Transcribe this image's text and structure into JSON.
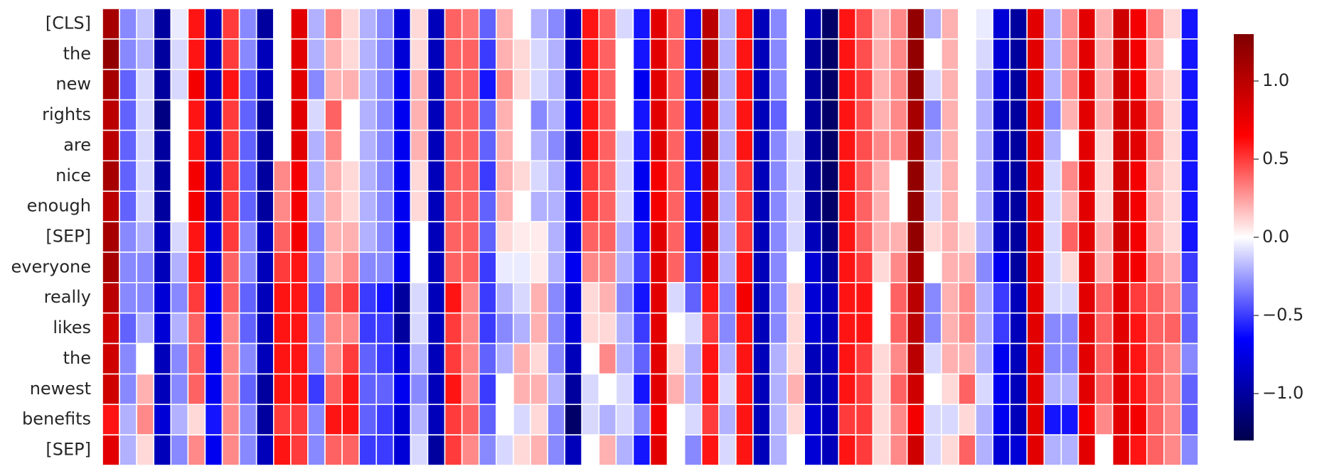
{
  "chart_data": {
    "type": "heatmap",
    "colormap": "seismic",
    "rows": [
      "[CLS]",
      "the",
      "new",
      "rights",
      "are",
      "nice",
      "enough",
      "[SEP]",
      "everyone",
      "really",
      "likes",
      "the",
      "newest",
      "benefits",
      "[SEP]"
    ],
    "vlim": [
      -1.3,
      1.3
    ],
    "colorbar_ticks": [
      {
        "value": -1.0,
        "label": "−1.0"
      },
      {
        "value": -0.5,
        "label": "−0.5"
      },
      {
        "value": 0,
        "label": "0.0"
      },
      {
        "value": 0.5,
        "label": "0.5"
      },
      {
        "value": 1.0,
        "label": "1.0"
      }
    ],
    "values": [
      [
        1.1,
        -0.3,
        -0.15,
        -1.0,
        -0.05,
        0.6,
        -0.9,
        0.5,
        -0.3,
        -1.0,
        0.0,
        0.8,
        -0.2,
        0.3,
        0.1,
        -0.2,
        -0.3,
        -0.8,
        0.1,
        -0.9,
        0.4,
        0.35,
        -0.4,
        0.2,
        0.0,
        -0.2,
        -0.3,
        -0.9,
        0.6,
        0.4,
        -0.1,
        -0.6,
        0.8,
        0.4,
        -0.6,
        1.0,
        -0.2,
        0.6,
        -0.9,
        -0.3,
        0.0,
        -0.9,
        -1.2,
        0.6,
        0.45,
        0.2,
        0.3,
        1.2,
        -0.2,
        0.2,
        0.0,
        -0.05,
        -0.8,
        -1.0,
        0.8,
        -0.2,
        0.3,
        0.8,
        0.2,
        0.9,
        0.7,
        0.3,
        0.1,
        -0.6
      ],
      [
        1.2,
        -0.3,
        -0.2,
        -1.0,
        -0.1,
        0.6,
        -0.9,
        0.5,
        -0.3,
        -0.9,
        0.0,
        0.8,
        -0.2,
        0.2,
        0.1,
        -0.2,
        -0.3,
        -0.8,
        0.1,
        -0.9,
        0.4,
        0.4,
        -0.5,
        0.2,
        0.1,
        -0.1,
        -0.2,
        -0.9,
        0.6,
        0.4,
        0.0,
        -0.6,
        0.8,
        0.4,
        -0.6,
        1.0,
        -0.2,
        0.6,
        -0.9,
        -0.3,
        0.0,
        -1.0,
        -1.2,
        0.6,
        0.45,
        0.2,
        0.3,
        1.2,
        0.0,
        0.2,
        0.0,
        -0.1,
        -0.8,
        -1.0,
        0.8,
        -0.2,
        0.3,
        0.8,
        0.2,
        0.9,
        0.7,
        0.2,
        0.0,
        -0.6
      ],
      [
        1.1,
        -0.4,
        -0.1,
        -1.0,
        -0.1,
        0.7,
        -0.9,
        0.6,
        -0.4,
        -0.9,
        0.0,
        0.8,
        -0.3,
        0.2,
        0.2,
        -0.2,
        -0.3,
        -0.7,
        0.2,
        -0.9,
        0.4,
        0.4,
        -0.6,
        0.3,
        0.1,
        -0.1,
        -0.2,
        -0.9,
        0.6,
        0.4,
        0.0,
        -0.7,
        0.8,
        0.4,
        -0.6,
        1.1,
        -0.2,
        0.6,
        -0.9,
        -0.3,
        0.0,
        -1.0,
        -1.2,
        0.6,
        0.5,
        0.2,
        0.3,
        1.2,
        -0.1,
        0.2,
        0.0,
        -0.2,
        -0.8,
        -1.0,
        0.8,
        -0.2,
        0.3,
        0.8,
        0.2,
        0.9,
        0.7,
        0.2,
        0.1,
        -0.6
      ],
      [
        1.0,
        -0.4,
        -0.1,
        -1.1,
        0.0,
        0.6,
        -0.9,
        0.5,
        -0.4,
        -1.0,
        0.0,
        0.8,
        -0.1,
        0.4,
        0.0,
        -0.2,
        -0.3,
        -0.7,
        0.2,
        -0.9,
        0.4,
        0.4,
        -0.4,
        0.2,
        0.0,
        -0.3,
        -0.2,
        -0.8,
        0.6,
        0.4,
        0.0,
        -0.6,
        0.8,
        0.4,
        -0.6,
        0.9,
        -0.2,
        0.6,
        -0.9,
        -0.4,
        0.0,
        -1.0,
        -1.2,
        0.6,
        0.45,
        0.2,
        0.3,
        1.1,
        -0.3,
        0.2,
        0.0,
        -0.2,
        -0.9,
        -1.0,
        0.8,
        -0.3,
        0.2,
        0.8,
        0.2,
        0.9,
        0.8,
        0.3,
        0.1,
        -0.6
      ],
      [
        1.0,
        -0.4,
        -0.1,
        -1.0,
        0.0,
        0.6,
        -0.9,
        0.5,
        -0.4,
        -1.0,
        0.0,
        0.8,
        -0.2,
        0.3,
        0.0,
        -0.2,
        -0.3,
        -0.7,
        0.2,
        -0.9,
        0.4,
        0.4,
        -0.4,
        0.2,
        0.0,
        -0.2,
        -0.3,
        -0.9,
        0.6,
        0.4,
        -0.1,
        -0.6,
        0.8,
        0.4,
        -0.6,
        1.0,
        -0.2,
        0.6,
        -0.9,
        -0.3,
        -0.1,
        -1.0,
        -1.2,
        0.6,
        0.45,
        0.3,
        0.3,
        1.1,
        -0.2,
        0.2,
        0.0,
        -0.2,
        -0.9,
        -1.0,
        0.8,
        -0.2,
        0.0,
        0.8,
        0.1,
        0.9,
        0.8,
        0.3,
        0.1,
        -0.6
      ],
      [
        1.1,
        -0.4,
        -0.1,
        -1.0,
        0.0,
        0.7,
        -0.9,
        0.5,
        -0.4,
        -1.0,
        0.3,
        0.7,
        -0.2,
        0.2,
        0.1,
        -0.2,
        -0.3,
        -0.7,
        0.1,
        -0.9,
        0.4,
        0.4,
        -0.5,
        0.2,
        0.1,
        -0.1,
        -0.2,
        -0.8,
        0.5,
        0.4,
        -0.1,
        -0.7,
        0.7,
        0.4,
        -0.6,
        0.9,
        -0.2,
        0.5,
        -0.9,
        -0.3,
        -0.1,
        -1.0,
        -1.2,
        0.6,
        0.4,
        0.2,
        0.0,
        1.2,
        -0.1,
        0.2,
        0.0,
        -0.2,
        -0.9,
        -1.0,
        0.8,
        -0.1,
        0.3,
        0.8,
        0.1,
        0.9,
        0.7,
        0.2,
        0.1,
        -0.6
      ],
      [
        1.0,
        -0.4,
        -0.1,
        -1.0,
        0.0,
        0.7,
        -0.9,
        0.5,
        -0.4,
        -1.0,
        0.3,
        0.7,
        -0.2,
        0.2,
        0.1,
        -0.2,
        -0.3,
        -0.7,
        0.1,
        -0.9,
        0.4,
        0.4,
        -0.4,
        0.2,
        0.0,
        -0.2,
        -0.2,
        -0.8,
        0.5,
        0.4,
        -0.1,
        -0.7,
        0.7,
        0.4,
        -0.6,
        0.9,
        -0.2,
        0.5,
        -0.9,
        -0.3,
        -0.1,
        -1.0,
        -1.2,
        0.6,
        0.4,
        0.2,
        0.0,
        1.2,
        -0.1,
        0.2,
        0.0,
        -0.2,
        -0.9,
        -1.0,
        0.8,
        -0.1,
        0.2,
        0.8,
        0.1,
        0.9,
        0.7,
        0.2,
        0.1,
        -0.6
      ],
      [
        1.1,
        -0.3,
        -0.2,
        -0.9,
        -0.1,
        0.6,
        -0.8,
        0.5,
        -0.3,
        -0.9,
        0.4,
        0.7,
        -0.3,
        0.2,
        0.2,
        -0.2,
        -0.3,
        -0.7,
        0.0,
        -0.9,
        0.4,
        0.4,
        -0.4,
        0.1,
        0.05,
        0.05,
        -0.2,
        -0.8,
        0.4,
        0.4,
        -0.2,
        -0.6,
        0.8,
        0.4,
        -0.6,
        0.9,
        -0.2,
        0.5,
        -0.9,
        -0.3,
        -0.1,
        -0.9,
        -1.1,
        0.6,
        0.4,
        0.2,
        0.2,
        1.2,
        0.1,
        0.2,
        0.1,
        -0.2,
        -0.9,
        -1.0,
        0.8,
        -0.1,
        0.4,
        0.8,
        0.2,
        0.9,
        0.7,
        0.2,
        0.1,
        -0.6
      ],
      [
        1.1,
        -0.3,
        -0.3,
        -0.9,
        -0.2,
        0.6,
        -0.8,
        0.4,
        -0.3,
        -0.9,
        0.5,
        0.6,
        -0.3,
        0.2,
        0.3,
        -0.3,
        -0.3,
        -0.7,
        0.0,
        -0.9,
        0.4,
        0.4,
        -0.5,
        -0.05,
        -0.05,
        0.05,
        -0.2,
        -0.7,
        0.3,
        0.3,
        -0.2,
        -0.5,
        0.8,
        0.4,
        -0.5,
        0.8,
        -0.2,
        0.6,
        -0.9,
        -0.3,
        0.0,
        -0.8,
        -1.0,
        0.6,
        0.5,
        0.1,
        0.3,
        1.1,
        0.0,
        0.2,
        0.2,
        -0.3,
        -0.7,
        -1.0,
        0.8,
        -0.1,
        0.1,
        0.8,
        0.2,
        0.8,
        0.7,
        0.3,
        0.2,
        -0.5
      ],
      [
        1.0,
        -0.3,
        -0.3,
        -0.8,
        -0.3,
        0.5,
        -0.7,
        0.4,
        -0.4,
        -0.9,
        0.6,
        0.6,
        -0.4,
        0.4,
        0.5,
        -0.5,
        -0.6,
        -1.0,
        -0.1,
        -0.9,
        0.6,
        0.3,
        -0.5,
        -0.2,
        -0.1,
        0.2,
        -0.3,
        -0.8,
        0.1,
        0.2,
        -0.3,
        -0.6,
        0.8,
        -0.1,
        -0.4,
        0.6,
        -0.3,
        0.7,
        -0.9,
        -0.3,
        0.1,
        -0.8,
        -0.9,
        0.6,
        0.6,
        0.0,
        0.4,
        1.0,
        -0.3,
        0.2,
        0.3,
        -0.2,
        -0.5,
        -0.9,
        0.8,
        -0.1,
        -0.1,
        0.8,
        0.4,
        0.8,
        0.5,
        0.4,
        0.3,
        -0.4
      ],
      [
        0.9,
        -0.4,
        -0.2,
        -0.8,
        -0.2,
        0.4,
        -0.7,
        0.3,
        -0.4,
        -0.9,
        0.6,
        0.6,
        -0.3,
        0.3,
        0.3,
        -0.5,
        -0.5,
        -1.0,
        -0.1,
        -0.9,
        0.5,
        0.3,
        -0.5,
        -0.3,
        -0.2,
        0.2,
        -0.3,
        -0.8,
        0.1,
        0.1,
        -0.2,
        -0.5,
        0.8,
        0.0,
        -0.1,
        0.5,
        -0.3,
        0.6,
        -0.9,
        -0.3,
        0.1,
        -0.8,
        -0.9,
        0.6,
        0.6,
        0.0,
        0.4,
        1.0,
        -0.3,
        0.2,
        0.3,
        -0.2,
        -0.5,
        -0.9,
        0.8,
        -0.3,
        -0.3,
        0.8,
        0.4,
        0.8,
        0.6,
        0.4,
        0.4,
        -0.4
      ],
      [
        0.9,
        -0.3,
        0.0,
        -0.9,
        -0.3,
        0.4,
        -0.7,
        0.3,
        -0.3,
        -0.9,
        0.6,
        0.6,
        -0.3,
        0.3,
        0.5,
        -0.4,
        -0.5,
        -0.8,
        -0.2,
        -0.9,
        0.5,
        0.3,
        -0.4,
        -0.2,
        0.2,
        0.1,
        -0.3,
        -0.9,
        0.0,
        0.3,
        -0.2,
        -0.4,
        0.8,
        0.1,
        -0.2,
        0.6,
        -0.2,
        0.6,
        -0.9,
        -0.2,
        0.1,
        -0.9,
        -0.9,
        0.6,
        0.5,
        0.1,
        0.3,
        1.0,
        -0.1,
        0.2,
        0.2,
        -0.2,
        -0.7,
        -0.9,
        0.8,
        -0.3,
        -0.3,
        0.8,
        0.4,
        0.8,
        0.6,
        0.4,
        0.3,
        -0.3
      ],
      [
        0.9,
        -0.3,
        0.2,
        -0.9,
        -0.3,
        0.4,
        -0.7,
        0.3,
        -0.4,
        -1.0,
        0.6,
        0.6,
        -0.5,
        0.4,
        0.6,
        -0.4,
        -0.4,
        -0.7,
        -0.3,
        -0.9,
        0.6,
        0.3,
        -0.5,
        0.0,
        0.2,
        0.2,
        -0.2,
        -1.0,
        -0.1,
        0.0,
        -0.1,
        -0.6,
        0.8,
        0.2,
        -0.2,
        0.6,
        -0.1,
        0.6,
        -0.9,
        -0.2,
        0.2,
        -0.9,
        -0.9,
        0.6,
        0.5,
        0.1,
        0.4,
        0.9,
        0.0,
        0.1,
        0.4,
        -0.1,
        -0.7,
        -0.9,
        0.8,
        -0.2,
        -0.2,
        0.8,
        0.4,
        0.8,
        0.6,
        0.4,
        0.3,
        -0.4
      ],
      [
        0.6,
        -0.2,
        0.3,
        -0.8,
        -0.2,
        0.1,
        -0.6,
        0.3,
        -0.3,
        -1.0,
        0.5,
        0.5,
        -0.3,
        0.6,
        0.6,
        -0.4,
        -0.5,
        -0.8,
        -0.2,
        -0.9,
        0.5,
        0.4,
        -0.4,
        0.0,
        -0.1,
        0.1,
        -0.3,
        -1.2,
        -0.1,
        -0.2,
        -0.1,
        -0.3,
        0.7,
        0.0,
        -0.1,
        0.5,
        -0.2,
        0.6,
        -0.9,
        -0.2,
        0.1,
        -0.8,
        -0.9,
        0.5,
        0.5,
        0.1,
        0.3,
        0.7,
        -0.1,
        -0.1,
        0.1,
        -0.2,
        -0.7,
        -0.9,
        0.8,
        -0.6,
        -0.6,
        0.7,
        0.3,
        0.8,
        0.7,
        0.4,
        0.3,
        -0.4
      ],
      [
        0.8,
        -0.2,
        0.1,
        -0.9,
        -0.3,
        0.3,
        -0.7,
        0.3,
        -0.3,
        -0.9,
        0.6,
        0.5,
        -0.3,
        0.4,
        0.4,
        -0.5,
        -0.5,
        -0.8,
        -0.1,
        -1.0,
        0.5,
        0.3,
        -0.3,
        -0.1,
        0.1,
        0.2,
        -0.3,
        -0.9,
        0.0,
        0.2,
        -0.2,
        -0.6,
        0.8,
        0.0,
        -0.3,
        0.6,
        -0.1,
        0.6,
        -0.9,
        -0.2,
        0.0,
        -0.8,
        -0.9,
        0.6,
        0.5,
        0.1,
        0.3,
        0.9,
        -0.1,
        0.1,
        0.4,
        -0.2,
        -0.8,
        -0.8,
        0.8,
        -0.2,
        -0.2,
        0.8,
        0.0,
        0.8,
        0.6,
        0.4,
        0.3,
        -0.3
      ]
    ]
  }
}
